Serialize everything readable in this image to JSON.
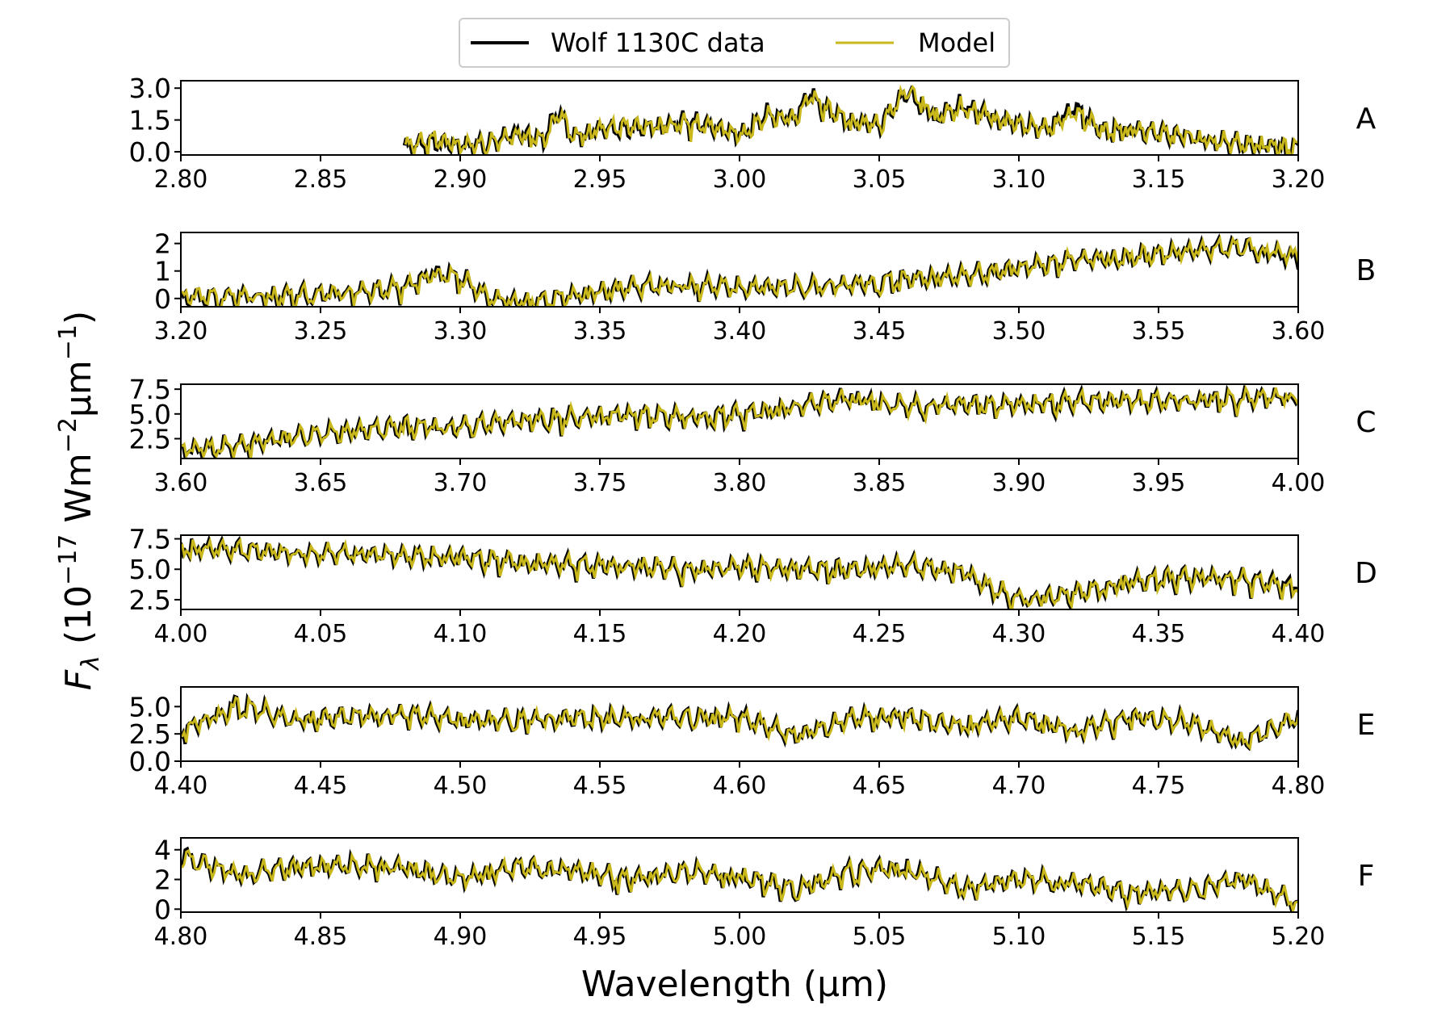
{
  "legend": {
    "data_label": "Wolf 1130C data",
    "model_label": "Model"
  },
  "xlabel": "Wavelength (µm)",
  "ylabel_parts": {
    "f": "F",
    "lambda": "λ",
    "open": " (10",
    "exp1": "−17",
    "mid": " Wm",
    "exp2": "−2",
    "mu": "µm",
    "exp3": "−1",
    "close": ")"
  },
  "colors": {
    "data": "#000000",
    "model": "#c9b81b"
  },
  "chart_data": [
    {
      "type": "line",
      "panel": "A",
      "xlim": [
        2.8,
        3.2
      ],
      "ylim": [
        -0.15,
        3.35
      ],
      "xticks": [
        "2.80",
        "2.85",
        "2.90",
        "2.95",
        "3.00",
        "3.05",
        "3.10",
        "3.15",
        "3.20"
      ],
      "yticks": [
        "0.0",
        "1.5",
        "3.0"
      ],
      "data_start": 2.88,
      "series": [
        {
          "name": "Wolf 1130C data",
          "x": [
            2.88,
            2.89,
            2.9,
            2.91,
            2.92,
            2.93,
            2.935,
            2.94,
            2.95,
            2.96,
            2.97,
            2.98,
            2.99,
            3.0,
            3.01,
            3.02,
            3.025,
            3.03,
            3.04,
            3.05,
            3.06,
            3.07,
            3.08,
            3.09,
            3.1,
            3.11,
            3.12,
            3.13,
            3.14,
            3.15,
            3.16,
            3.17,
            3.18,
            3.19,
            3.2
          ],
          "y": [
            0.3,
            0.6,
            0.4,
            0.5,
            1.0,
            0.7,
            2.1,
            0.8,
            1.2,
            1.2,
            1.3,
            1.6,
            1.3,
            0.9,
            1.9,
            1.7,
            2.9,
            2.2,
            1.5,
            1.4,
            3.0,
            1.8,
            2.3,
            1.8,
            1.4,
            1.2,
            2.2,
            1.1,
            1.2,
            1.0,
            0.9,
            0.6,
            0.5,
            0.4,
            0.25
          ]
        },
        {
          "name": "Model",
          "x": [
            2.88,
            2.89,
            2.9,
            2.91,
            2.92,
            2.93,
            2.935,
            2.94,
            2.95,
            2.96,
            2.97,
            2.98,
            2.99,
            3.0,
            3.01,
            3.02,
            3.025,
            3.03,
            3.04,
            3.05,
            3.06,
            3.07,
            3.08,
            3.09,
            3.1,
            3.11,
            3.12,
            3.13,
            3.14,
            3.15,
            3.16,
            3.17,
            3.18,
            3.19,
            3.2
          ],
          "y": [
            0.35,
            0.7,
            0.4,
            0.5,
            0.9,
            0.7,
            2.0,
            0.8,
            1.2,
            1.3,
            1.3,
            1.5,
            1.3,
            0.9,
            1.8,
            1.7,
            2.8,
            2.2,
            1.5,
            1.4,
            3.1,
            1.8,
            2.2,
            1.8,
            1.4,
            1.2,
            2.0,
            1.1,
            1.2,
            1.0,
            0.9,
            0.6,
            0.5,
            0.4,
            0.3
          ]
        }
      ]
    },
    {
      "type": "line",
      "panel": "B",
      "xlim": [
        3.2,
        3.6
      ],
      "ylim": [
        -0.3,
        2.4
      ],
      "xticks": [
        "3.20",
        "3.25",
        "3.30",
        "3.35",
        "3.40",
        "3.45",
        "3.50",
        "3.55",
        "3.60"
      ],
      "yticks": [
        "0",
        "1",
        "2"
      ],
      "series": [
        {
          "name": "Wolf 1130C data",
          "x": [
            3.2,
            3.22,
            3.24,
            3.26,
            3.28,
            3.29,
            3.3,
            3.31,
            3.32,
            3.33,
            3.34,
            3.36,
            3.38,
            3.4,
            3.42,
            3.44,
            3.46,
            3.48,
            3.5,
            3.52,
            3.54,
            3.56,
            3.58,
            3.6
          ],
          "y": [
            0.1,
            0.2,
            0.2,
            0.3,
            0.5,
            1.0,
            0.9,
            0.1,
            0.0,
            0.0,
            0.2,
            0.5,
            0.6,
            0.5,
            0.5,
            0.6,
            0.8,
            0.9,
            1.2,
            1.5,
            1.6,
            1.8,
            2.0,
            1.5
          ]
        },
        {
          "name": "Model",
          "x": [
            3.2,
            3.22,
            3.24,
            3.26,
            3.28,
            3.29,
            3.3,
            3.31,
            3.32,
            3.33,
            3.34,
            3.36,
            3.38,
            3.4,
            3.42,
            3.44,
            3.46,
            3.48,
            3.5,
            3.52,
            3.54,
            3.56,
            3.58,
            3.6
          ],
          "y": [
            0.15,
            0.2,
            0.2,
            0.3,
            0.5,
            0.95,
            0.85,
            0.1,
            0.0,
            0.0,
            0.2,
            0.5,
            0.6,
            0.5,
            0.5,
            0.6,
            0.8,
            0.9,
            1.2,
            1.5,
            1.6,
            1.8,
            2.0,
            1.6
          ]
        }
      ]
    },
    {
      "type": "line",
      "panel": "C",
      "xlim": [
        3.6,
        4.0
      ],
      "ylim": [
        0.5,
        8.0
      ],
      "xticks": [
        "3.60",
        "3.65",
        "3.70",
        "3.75",
        "3.80",
        "3.85",
        "3.90",
        "3.95",
        "4.00"
      ],
      "yticks": [
        "2.5",
        "5.0",
        "7.5"
      ],
      "series": [
        {
          "name": "Wolf 1130C data",
          "x": [
            3.6,
            3.62,
            3.64,
            3.66,
            3.68,
            3.7,
            3.72,
            3.74,
            3.76,
            3.78,
            3.8,
            3.82,
            3.84,
            3.86,
            3.88,
            3.9,
            3.92,
            3.94,
            3.96,
            3.98,
            4.0
          ],
          "y": [
            1.5,
            2.0,
            3.0,
            3.5,
            4.0,
            4.0,
            4.5,
            5.0,
            5.2,
            5.0,
            5.2,
            6.0,
            7.0,
            6.0,
            6.2,
            6.2,
            6.5,
            6.6,
            6.6,
            6.8,
            7.0
          ]
        },
        {
          "name": "Model",
          "x": [
            3.6,
            3.62,
            3.64,
            3.66,
            3.68,
            3.7,
            3.72,
            3.74,
            3.76,
            3.78,
            3.8,
            3.82,
            3.84,
            3.86,
            3.88,
            3.9,
            3.92,
            3.94,
            3.96,
            3.98,
            4.0
          ],
          "y": [
            1.6,
            2.0,
            3.0,
            3.5,
            4.0,
            4.0,
            4.5,
            5.0,
            5.2,
            5.0,
            5.2,
            6.0,
            6.9,
            6.0,
            6.2,
            6.2,
            6.5,
            6.6,
            6.6,
            6.8,
            7.1
          ]
        }
      ]
    },
    {
      "type": "line",
      "panel": "D",
      "xlim": [
        4.0,
        4.4
      ],
      "ylim": [
        1.7,
        7.8
      ],
      "xticks": [
        "4.00",
        "4.05",
        "4.10",
        "4.15",
        "4.20",
        "4.25",
        "4.30",
        "4.35",
        "4.40"
      ],
      "yticks": [
        "2.5",
        "5.0",
        "7.5"
      ],
      "series": [
        {
          "name": "Wolf 1130C data",
          "x": [
            4.0,
            4.02,
            4.04,
            4.06,
            4.08,
            4.1,
            4.12,
            4.14,
            4.16,
            4.18,
            4.2,
            4.22,
            4.24,
            4.26,
            4.28,
            4.29,
            4.3,
            4.32,
            4.34,
            4.36,
            4.38,
            4.4
          ],
          "y": [
            7.0,
            6.8,
            6.5,
            6.5,
            6.3,
            6.2,
            5.8,
            5.6,
            5.5,
            5.2,
            5.4,
            5.2,
            5.2,
            5.5,
            5.0,
            3.5,
            2.8,
            3.2,
            4.2,
            4.6,
            4.4,
            3.8
          ]
        },
        {
          "name": "Model",
          "x": [
            4.0,
            4.02,
            4.04,
            4.06,
            4.08,
            4.1,
            4.12,
            4.14,
            4.16,
            4.18,
            4.2,
            4.22,
            4.24,
            4.26,
            4.28,
            4.29,
            4.3,
            4.32,
            4.34,
            4.36,
            4.38,
            4.4
          ],
          "y": [
            6.9,
            6.8,
            6.5,
            6.5,
            6.3,
            6.2,
            5.8,
            5.6,
            5.5,
            5.2,
            5.4,
            5.2,
            5.2,
            5.5,
            5.0,
            3.6,
            2.8,
            3.2,
            4.2,
            4.6,
            4.4,
            3.6
          ]
        }
      ]
    },
    {
      "type": "line",
      "panel": "E",
      "xlim": [
        4.4,
        4.8
      ],
      "ylim": [
        0.0,
        6.8
      ],
      "xticks": [
        "4.40",
        "4.45",
        "4.50",
        "4.55",
        "4.60",
        "4.65",
        "4.70",
        "4.75",
        "4.80"
      ],
      "yticks": [
        "0.0",
        "2.5",
        "5.0"
      ],
      "series": [
        {
          "name": "Wolf 1130C data",
          "x": [
            4.4,
            4.42,
            4.44,
            4.46,
            4.48,
            4.5,
            4.52,
            4.54,
            4.56,
            4.58,
            4.6,
            4.62,
            4.64,
            4.66,
            4.68,
            4.7,
            4.72,
            4.74,
            4.76,
            4.78,
            4.8
          ],
          "y": [
            3.0,
            5.5,
            4.0,
            4.3,
            4.5,
            4.0,
            4.0,
            4.2,
            4.2,
            4.3,
            4.3,
            2.5,
            4.2,
            4.3,
            3.5,
            4.2,
            3.0,
            4.3,
            3.8,
            2.0,
            4.2
          ]
        },
        {
          "name": "Model",
          "x": [
            4.4,
            4.42,
            4.44,
            4.46,
            4.48,
            4.5,
            4.52,
            4.54,
            4.56,
            4.58,
            4.6,
            4.62,
            4.64,
            4.66,
            4.68,
            4.7,
            4.72,
            4.74,
            4.76,
            4.78,
            4.8
          ],
          "y": [
            3.1,
            5.4,
            4.0,
            4.3,
            4.5,
            4.0,
            4.0,
            4.2,
            4.2,
            4.3,
            4.2,
            2.5,
            4.2,
            4.3,
            3.5,
            4.2,
            3.0,
            4.3,
            3.8,
            2.0,
            4.3
          ]
        }
      ]
    },
    {
      "type": "line",
      "panel": "F",
      "xlim": [
        4.8,
        5.2
      ],
      "ylim": [
        -0.2,
        4.8
      ],
      "xticks": [
        "4.80",
        "4.85",
        "4.90",
        "4.95",
        "5.00",
        "5.05",
        "5.10",
        "5.15",
        "5.20"
      ],
      "yticks": [
        "0",
        "2",
        "4"
      ],
      "series": [
        {
          "name": "Wolf 1130C data",
          "x": [
            4.8,
            4.82,
            4.84,
            4.86,
            4.88,
            4.9,
            4.92,
            4.94,
            4.96,
            4.98,
            5.0,
            5.02,
            5.04,
            5.06,
            5.08,
            5.1,
            5.12,
            5.14,
            5.16,
            5.18,
            5.2
          ],
          "y": [
            3.8,
            2.5,
            3.0,
            3.2,
            3.0,
            2.2,
            3.0,
            2.8,
            2.2,
            2.7,
            2.4,
            1.5,
            2.8,
            3.0,
            1.5,
            2.2,
            2.0,
            1.2,
            1.5,
            2.2,
            0.5
          ]
        },
        {
          "name": "Model",
          "x": [
            4.8,
            4.82,
            4.84,
            4.86,
            4.88,
            4.9,
            4.92,
            4.94,
            4.96,
            4.98,
            5.0,
            5.02,
            5.04,
            5.06,
            5.08,
            5.1,
            5.12,
            5.14,
            5.16,
            5.18,
            5.2
          ],
          "y": [
            3.7,
            2.5,
            3.0,
            3.2,
            3.0,
            2.2,
            3.0,
            2.8,
            2.2,
            2.7,
            2.4,
            1.5,
            2.8,
            2.9,
            1.5,
            2.2,
            2.0,
            1.2,
            1.5,
            2.2,
            0.5
          ]
        }
      ]
    }
  ]
}
